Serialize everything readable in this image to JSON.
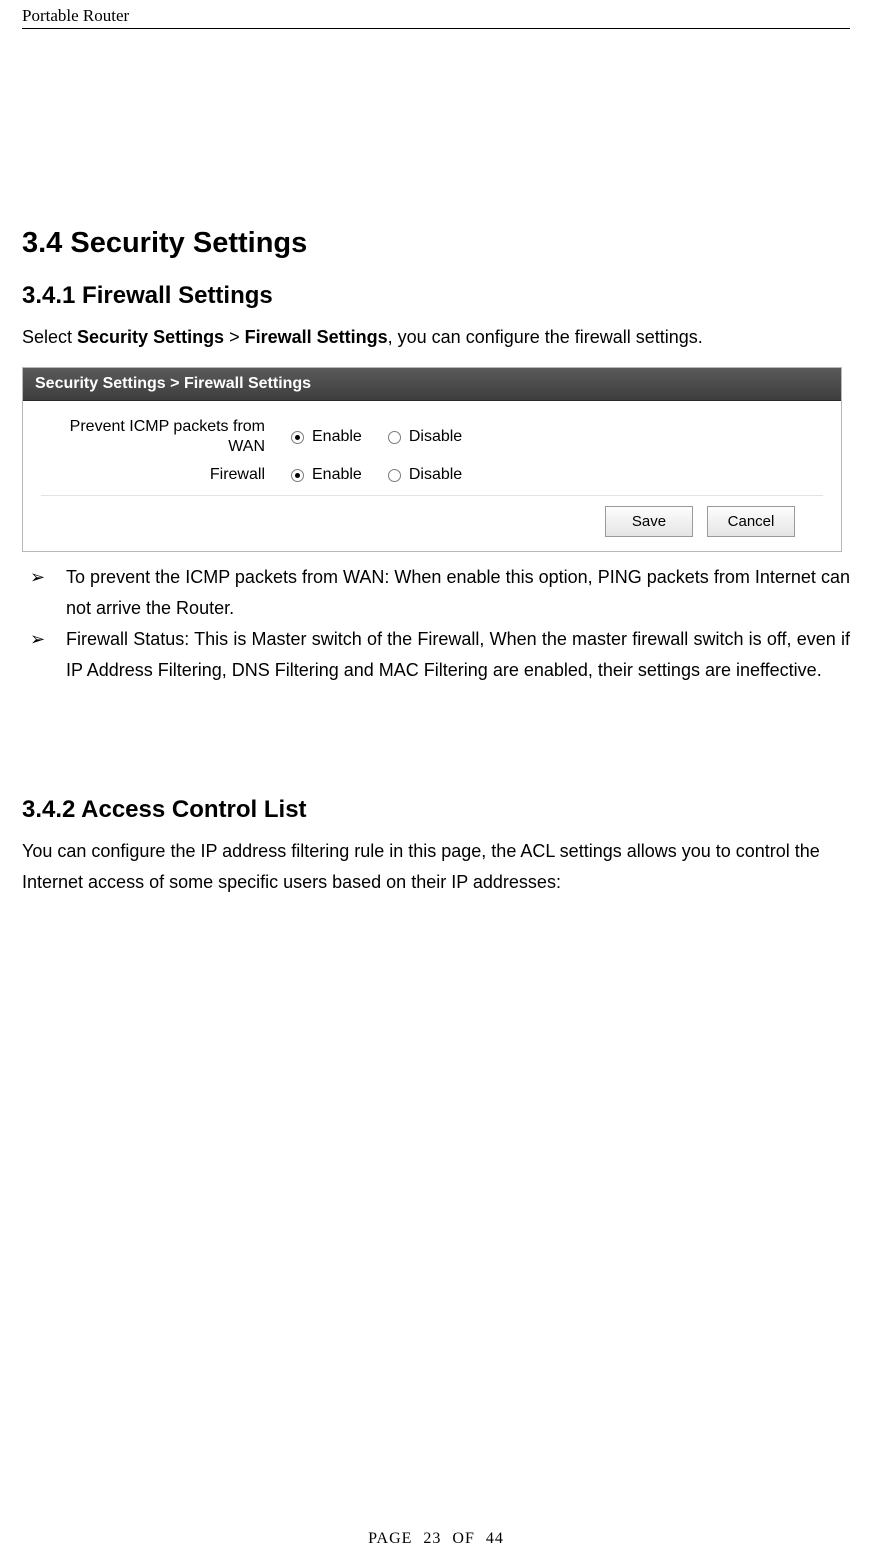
{
  "page": {
    "running_header": "Portable Router",
    "footer": "PAGE  23  OF  44"
  },
  "headings": {
    "h1": "3.4 Security Settings",
    "h2a": "3.4.1 Firewall Settings",
    "h2b": "3.4.2 Access Control List"
  },
  "paragraphs": {
    "p1_pre": "Select ",
    "p1_b1": "Security Settings",
    "p1_mid": " > ",
    "p1_b2": "Firewall Settings",
    "p1_post": ", you can configure the firewall settings.",
    "p2": "You can configure the IP address filtering rule in this page, the ACL settings allows you to control the Internet access of some specific users based on their IP addresses:"
  },
  "bullets": {
    "marker": "➢",
    "items": [
      "To prevent the ICMP packets from WAN: When enable this option, PING packets from Internet can not arrive the Router.",
      "Firewall Status: This is Master switch of the Firewall, When the master firewall switch is off, even if IP Address Filtering, DNS Filtering and MAC Filtering are enabled, their settings are ineffective."
    ]
  },
  "screenshot": {
    "title": "Security Settings > Firewall Settings",
    "rows": [
      {
        "label": "Prevent ICMP packets from WAN",
        "opt_enable": "Enable",
        "opt_disable": "Disable",
        "checked": "enable"
      },
      {
        "label": "Firewall",
        "opt_enable": "Enable",
        "opt_disable": "Disable",
        "checked": "enable"
      }
    ],
    "buttons": {
      "save": "Save",
      "cancel": "Cancel"
    },
    "colors": {
      "titlebar_bg_top": "#5a5a5a",
      "titlebar_bg_bottom": "#3e3e3e",
      "titlebar_text": "#ffffff",
      "panel_border": "#b8b8b8",
      "button_border": "#9a9a9a",
      "button_bg_top": "#fdfdfd",
      "button_bg_bottom": "#e5e5e5",
      "divider": "#e3e3e3"
    }
  }
}
